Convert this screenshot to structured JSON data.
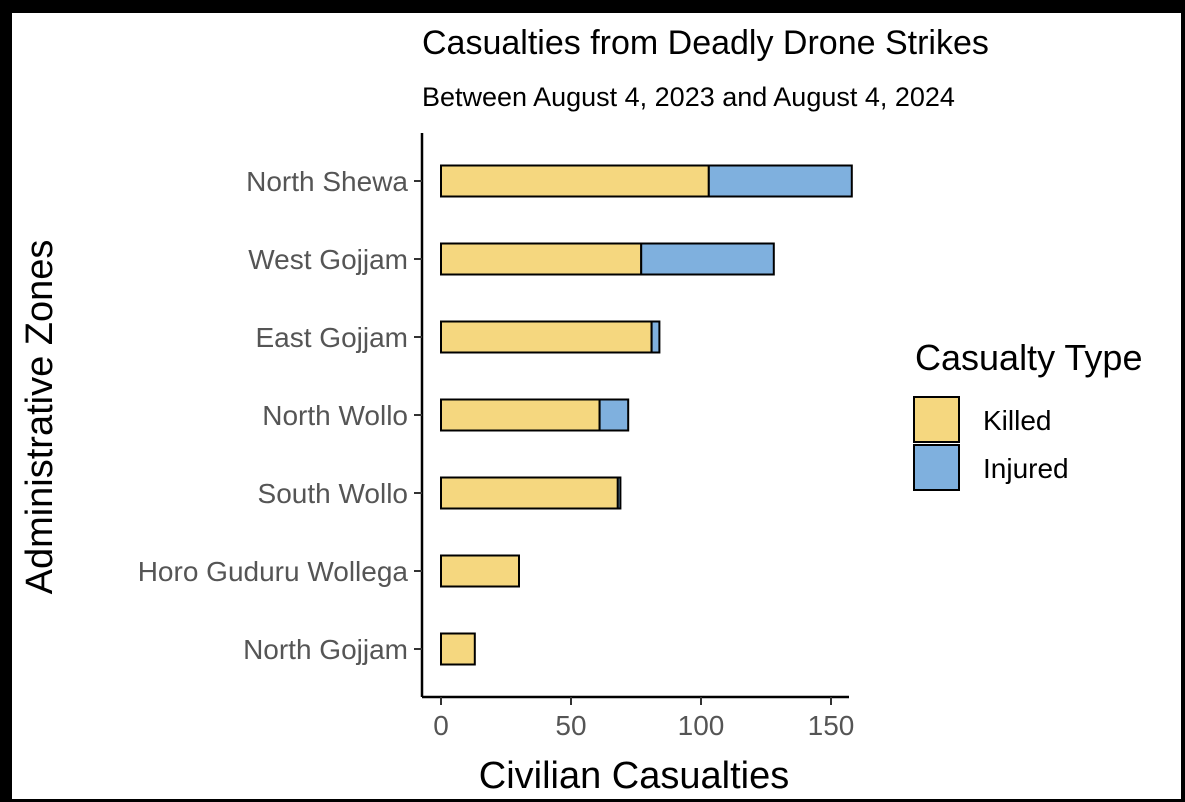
{
  "chart_data": {
    "type": "bar",
    "orientation": "horizontal",
    "stacked": true,
    "title": "Casualties from Deadly Drone Strikes",
    "subtitle": "Between August 4, 2023 and August 4, 2024",
    "xlabel": "Civilian Casualties",
    "ylabel": "Administrative Zones",
    "xlim": [
      0,
      158
    ],
    "xticks": [
      0,
      50,
      100,
      150
    ],
    "categories": [
      "North Shewa",
      "West Gojjam",
      "East Gojjam",
      "North Wollo",
      "South Wollo",
      "Horo Guduru Wollega",
      "North Gojjam"
    ],
    "series": [
      {
        "name": "Killed",
        "color": "#F5D77F",
        "values": [
          103,
          77,
          81,
          61,
          68,
          30,
          13
        ]
      },
      {
        "name": "Injured",
        "color": "#7FB0DE",
        "values": [
          55,
          51,
          3,
          11,
          1,
          0,
          0
        ]
      }
    ],
    "legend": {
      "title": "Casualty Type",
      "position": "right"
    },
    "grid": false
  }
}
